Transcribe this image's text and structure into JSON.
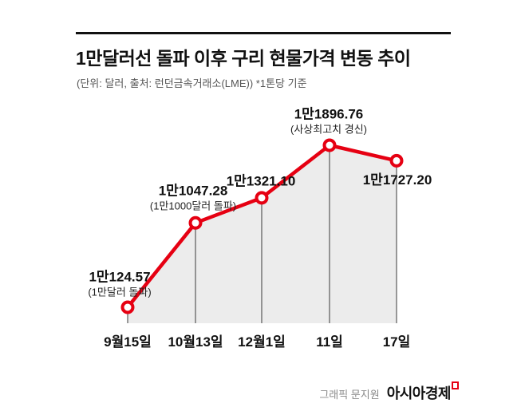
{
  "header": {
    "title": "1만달러선 돌파 이후 구리 현물가격 변동 추이",
    "subtitle": "(단위: 달러, 출처: 런던금속거래소(LME))  *1톤당 기준"
  },
  "chart_data": {
    "type": "line",
    "title": "1만달러선 돌파 이후 구리 현물가격 변동 추이",
    "unit_note": "(단위: 달러, 출처: 런던금속거래소(LME)) *1톤당 기준",
    "categories": [
      "9월15일",
      "10월13일",
      "12월1일",
      "11일",
      "17일"
    ],
    "values": [
      10124.57,
      11047.28,
      11321.1,
      11896.76,
      11727.2
    ],
    "point_labels": [
      "1만124.57",
      "1만1047.28",
      "1만1321.10",
      "1만1896.76",
      "1만1727.20"
    ],
    "point_annotations": [
      "(1만달러 돌파)",
      "(1만1000달러 돌파)",
      "",
      "(사상최고치 경신)",
      ""
    ],
    "ylim": [
      9950,
      12100
    ],
    "grid": false,
    "legend": "none",
    "line_color": "#e60012",
    "marker_style": "ring",
    "area_fill": "#ececec",
    "stem_color": "#3a3a3a"
  },
  "footer": {
    "credit": "그래픽 문지원",
    "brand": "아시아경제"
  },
  "colors": {
    "accent_red": "#e60012",
    "area_gray": "#ececec",
    "title_black": "#111111",
    "subtitle_gray": "#555555"
  }
}
